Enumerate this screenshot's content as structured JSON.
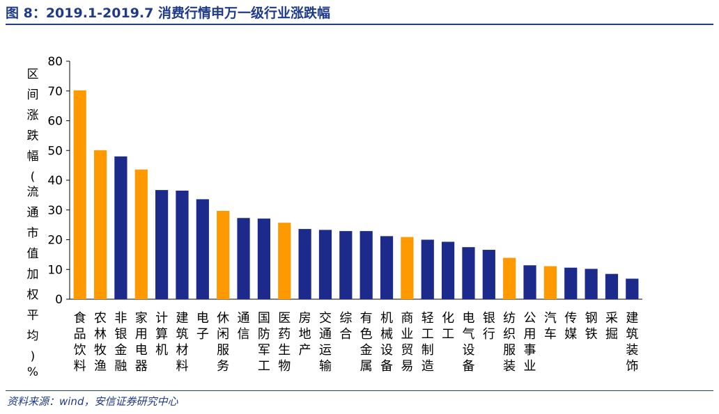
{
  "header": {
    "title": "图 8：2019.1-2019.7 消费行情申万一级行业涨跌幅"
  },
  "footer": {
    "source": "资料来源：wind，安信证券研究中心"
  },
  "colors": {
    "consumer": "#ff9900",
    "other": "#1c2a8c",
    "accent": "#1f3a8a"
  },
  "chart_data": {
    "type": "bar",
    "title": "",
    "xlabel": "",
    "ylabel": "区间涨跌幅(流通市值加权平均)%",
    "ylim": [
      0,
      80
    ],
    "yticks": [
      0,
      10,
      20,
      30,
      40,
      50,
      60,
      70,
      80
    ],
    "grid": false,
    "categories": [
      "食品饮料",
      "农林牧渔",
      "非银金融",
      "家用电器",
      "计算机",
      "建筑材料",
      "电子",
      "休闲服务",
      "通信",
      "国防军工",
      "医药生物",
      "房地产",
      "交通运输",
      "综合",
      "有色金属",
      "机械设备",
      "商业贸易",
      "轻工制造",
      "化工",
      "电气设备",
      "银行",
      "纺织服装",
      "公用事业",
      "汽车",
      "传媒",
      "钢铁",
      "采掘",
      "建筑装饰"
    ],
    "values": [
      70.2,
      50.1,
      48.0,
      43.6,
      36.7,
      36.5,
      33.6,
      29.7,
      27.3,
      27.1,
      25.7,
      23.6,
      23.3,
      22.9,
      22.9,
      21.2,
      20.9,
      20.0,
      19.3,
      17.5,
      16.6,
      13.9,
      11.4,
      11.1,
      10.6,
      10.2,
      8.5,
      6.9
    ],
    "highlight": [
      true,
      true,
      false,
      true,
      false,
      false,
      false,
      true,
      false,
      false,
      true,
      false,
      false,
      false,
      false,
      false,
      true,
      false,
      false,
      false,
      false,
      true,
      false,
      true,
      false,
      false,
      false,
      false
    ]
  }
}
